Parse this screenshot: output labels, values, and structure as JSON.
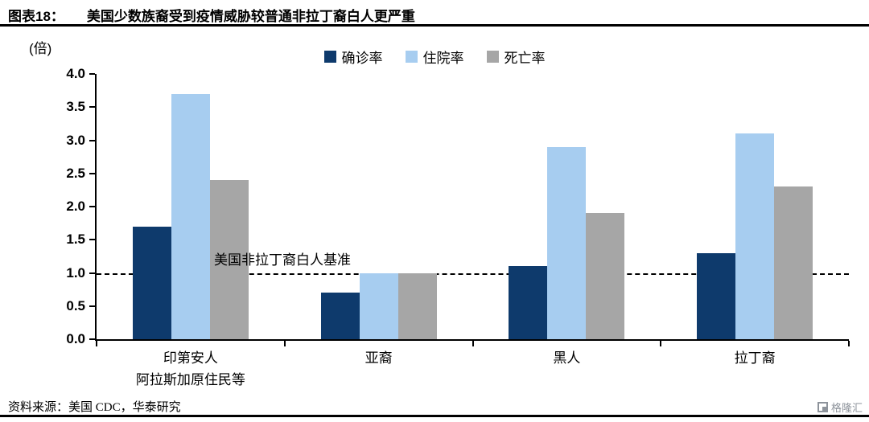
{
  "header": {
    "label": "图表18：",
    "title": "美国少数族裔受到疫情威胁较普通非拉丁裔白人更严重"
  },
  "chart_data": {
    "type": "bar",
    "title": "美国少数族裔受到疫情威胁较普通非拉丁裔白人更严重",
    "unit_label": "(倍)",
    "categories": [
      "印第安人\n阿拉斯加原住民等",
      "亚裔",
      "黑人",
      "拉丁裔"
    ],
    "series": [
      {
        "name": "确诊率",
        "color": "#0e3a6c",
        "values": [
          1.7,
          0.7,
          1.1,
          1.3
        ]
      },
      {
        "name": "住院率",
        "color": "#a7cdf0",
        "values": [
          3.7,
          1.0,
          2.9,
          3.1
        ]
      },
      {
        "name": "死亡率",
        "color": "#a6a6a6",
        "values": [
          2.4,
          1.0,
          1.9,
          2.3
        ]
      }
    ],
    "ylim": [
      0,
      4.0
    ],
    "yticks": [
      "4.0",
      "3.5",
      "3.0",
      "2.5",
      "2.0",
      "1.5",
      "1.0",
      "0.5",
      "0.0"
    ],
    "grid": false,
    "legend_position": "top",
    "baseline": {
      "value": 1.0,
      "label": "美国非拉丁裔白人基准"
    }
  },
  "footer": {
    "source": "资料来源：美国 CDC，华泰研究",
    "logo": "格隆汇"
  }
}
